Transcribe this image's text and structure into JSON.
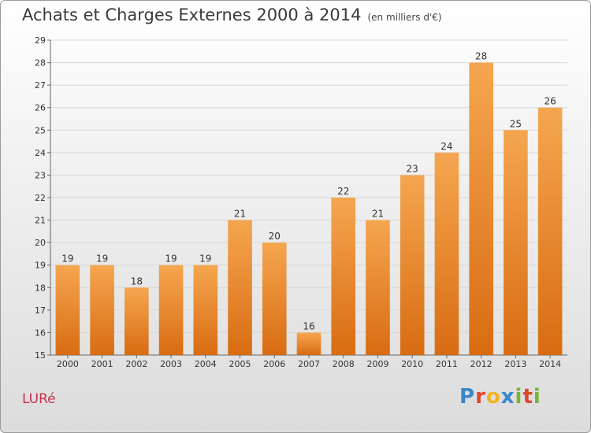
{
  "title": "Achats et Charges Externes 2000 à 2014",
  "unit_label": "(en milliers d'€)",
  "commune": "LURé",
  "logo": {
    "text": "Proxiti",
    "letter_colors": [
      "#3a86c8",
      "#e0452b",
      "#f2b321",
      "#3a86c8",
      "#7ab42f",
      "#e0452b",
      "#7ab42f"
    ]
  },
  "colors": {
    "bar_top": "#f5a650",
    "bar_bottom": "#d86c12",
    "title": "#3a3a3a",
    "commune": "#c8314a"
  },
  "chart_data": {
    "type": "bar",
    "categories": [
      "2000",
      "2001",
      "2002",
      "2003",
      "2004",
      "2005",
      "2006",
      "2007",
      "2008",
      "2009",
      "2010",
      "2011",
      "2012",
      "2013",
      "2014"
    ],
    "values": [
      19,
      19,
      18,
      19,
      19,
      21,
      20,
      16,
      22,
      21,
      23,
      24,
      28,
      25,
      26
    ],
    "ylim": [
      15,
      29
    ],
    "yticks": [
      15,
      16,
      17,
      18,
      19,
      20,
      21,
      22,
      23,
      24,
      25,
      26,
      27,
      28,
      29
    ],
    "grid": true,
    "legend": "none"
  }
}
